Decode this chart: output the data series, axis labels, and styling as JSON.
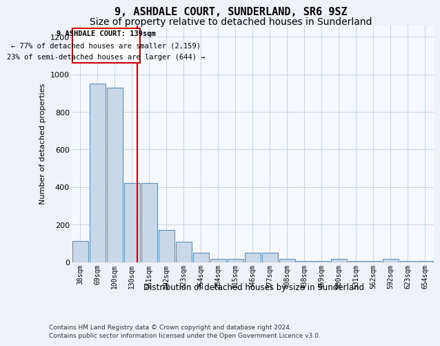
{
  "title": "9, ASHDALE COURT, SUNDERLAND, SR6 9SZ",
  "subtitle": "Size of property relative to detached houses in Sunderland",
  "xlabel": "Distribution of detached houses by size in Sunderland",
  "ylabel": "Number of detached properties",
  "footer1": "Contains HM Land Registry data © Crown copyright and database right 2024.",
  "footer2": "Contains public sector information licensed under the Open Government Licence v3.0.",
  "annotation_title": "9 ASHDALE COURT: 139sqm",
  "annotation_line1": "← 77% of detached houses are smaller (2,159)",
  "annotation_line2": "23% of semi-detached houses are larger (644) →",
  "categories": [
    "38sqm",
    "69sqm",
    "100sqm",
    "130sqm",
    "161sqm",
    "192sqm",
    "223sqm",
    "254sqm",
    "284sqm",
    "315sqm",
    "346sqm",
    "377sqm",
    "408sqm",
    "438sqm",
    "469sqm",
    "500sqm",
    "531sqm",
    "562sqm",
    "592sqm",
    "623sqm",
    "654sqm"
  ],
  "values": [
    112,
    950,
    930,
    420,
    420,
    170,
    110,
    50,
    18,
    18,
    50,
    50,
    15,
    5,
    5,
    18,
    5,
    5,
    18,
    5,
    5
  ],
  "bar_color": "#c8d8e8",
  "bar_edge_color": "#6090b8",
  "line_color": "#cc0000",
  "ylim": [
    0,
    1260
  ],
  "yticks": [
    0,
    200,
    400,
    600,
    800,
    1000,
    1200
  ],
  "bg_color": "#eef2f7",
  "plot_bg_color": "#f5f8fc",
  "grid_color": "#c8d4e0",
  "title_fontsize": 11,
  "subtitle_fontsize": 10
}
